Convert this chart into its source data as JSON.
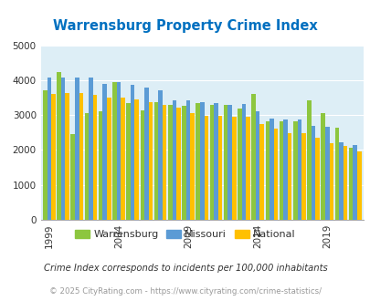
{
  "title": "Warrensburg Property Crime Index",
  "subtitle": "Crime Index corresponds to incidents per 100,000 inhabitants",
  "footer": "© 2025 CityRating.com - https://www.cityrating.com/crime-statistics/",
  "years": [
    1999,
    2000,
    2001,
    2002,
    2003,
    2004,
    2005,
    2006,
    2007,
    2008,
    2009,
    2010,
    2011,
    2012,
    2013,
    2014,
    2015,
    2016,
    2017,
    2018,
    2019,
    2020,
    2021
  ],
  "warrensburg": [
    3700,
    4230,
    2450,
    3060,
    3100,
    3950,
    3340,
    3130,
    3370,
    3280,
    3250,
    3340,
    3300,
    3300,
    3180,
    3600,
    2830,
    2830,
    2830,
    3430,
    3050,
    2630,
    2050
  ],
  "missouri": [
    4060,
    4060,
    4060,
    4080,
    3900,
    3950,
    3870,
    3780,
    3700,
    3420,
    3420,
    3380,
    3340,
    3300,
    3310,
    3100,
    2900,
    2860,
    2860,
    2680,
    2670,
    2220,
    2130
  ],
  "national": [
    3600,
    3620,
    3620,
    3570,
    3500,
    3500,
    3450,
    3380,
    3290,
    3220,
    3050,
    2985,
    2970,
    2950,
    2940,
    2750,
    2600,
    2490,
    2480,
    2360,
    2190,
    2110,
    1960
  ],
  "warrensburg_color": "#8dc63f",
  "missouri_color": "#5b9bd5",
  "national_color": "#ffc000",
  "bg_color": "#ddeef6",
  "fig_bg": "#ffffff",
  "ylim": [
    0,
    5000
  ],
  "yticks": [
    0,
    1000,
    2000,
    3000,
    4000,
    5000
  ],
  "xticks": [
    1999,
    2004,
    2009,
    2014,
    2019
  ],
  "title_color": "#0070c0",
  "subtitle_color": "#333333",
  "footer_color": "#999999",
  "grid_color": "#ffffff"
}
